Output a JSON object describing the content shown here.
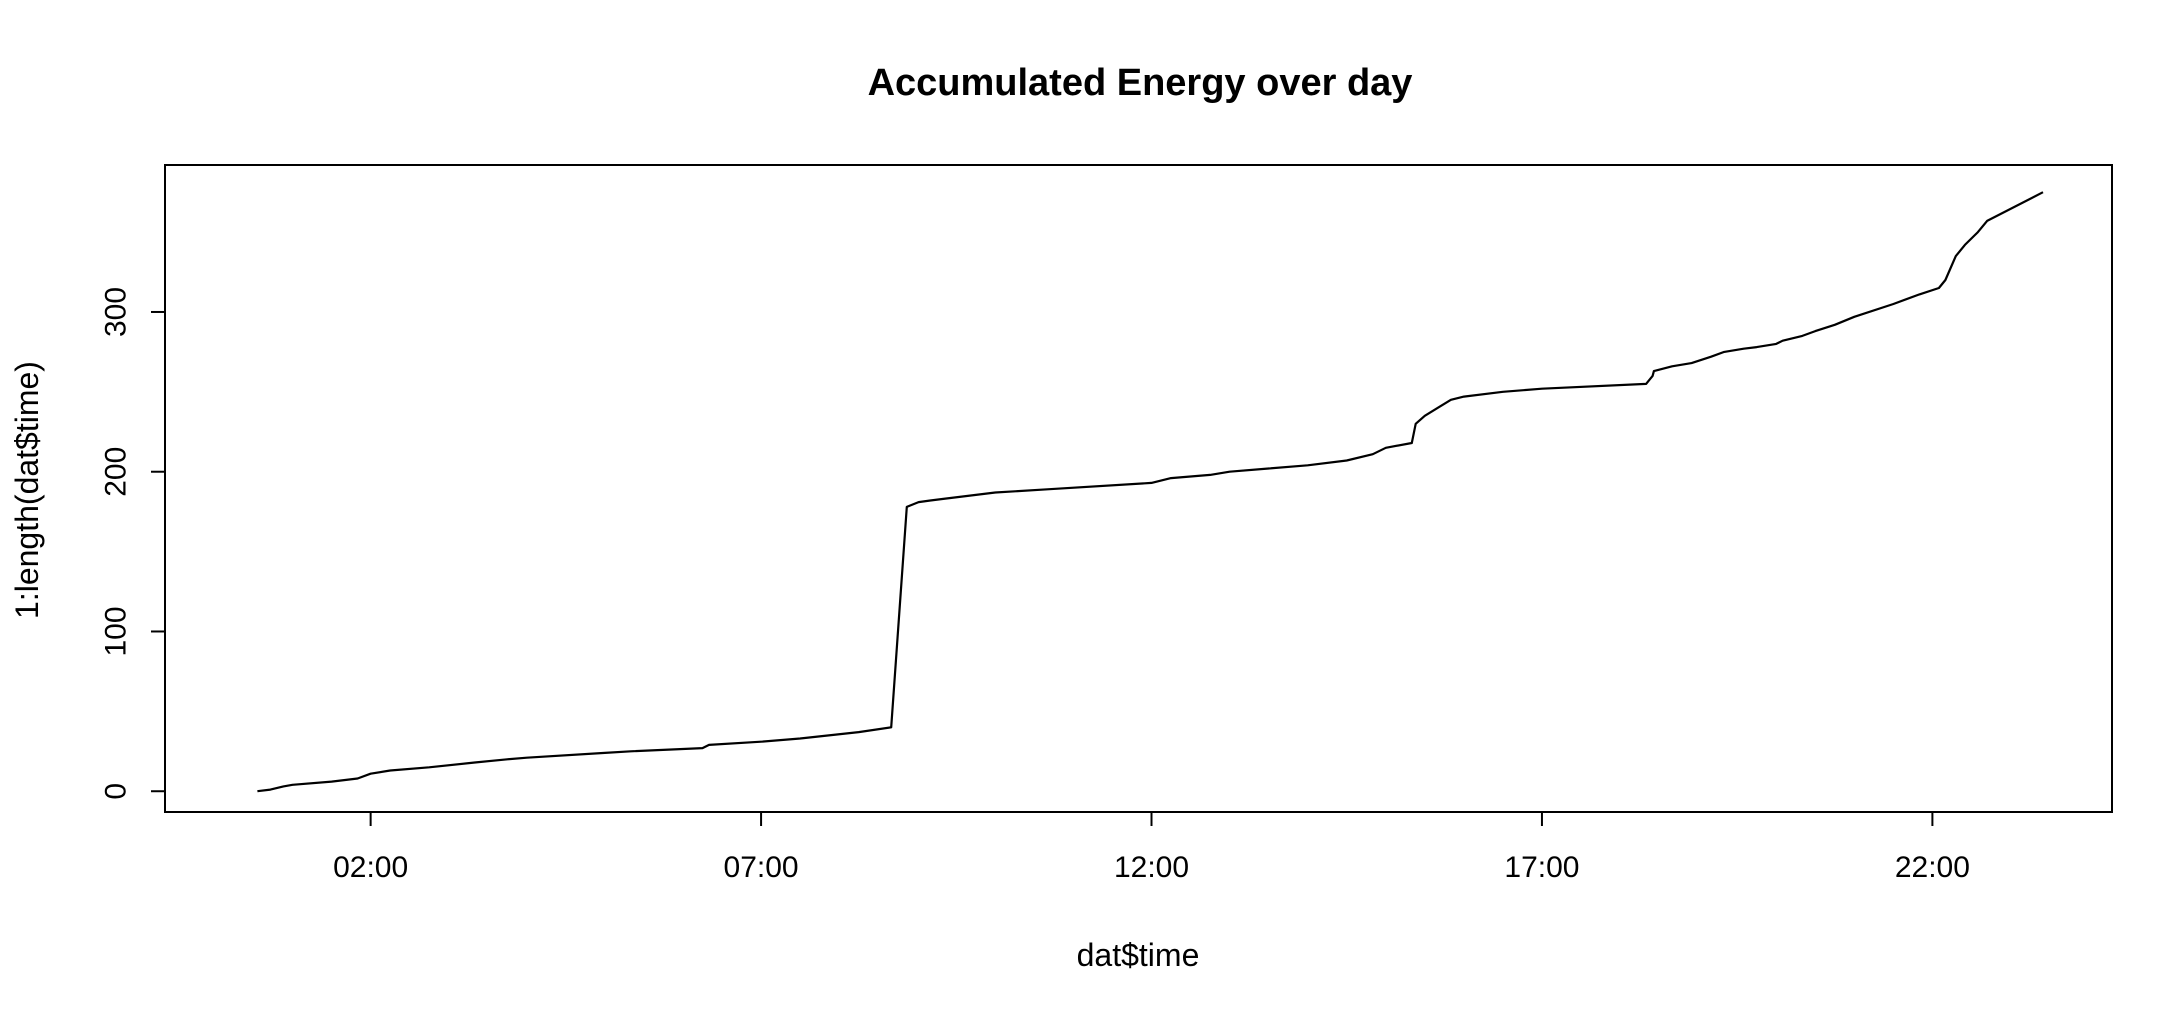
{
  "chart_data": {
    "type": "line",
    "title": "Accumulated Energy over day",
    "xlabel": "dat$time",
    "ylabel": "1:length(dat$time)",
    "xlim": [
      "-0:38",
      "24:18"
    ],
    "ylim": [
      -13,
      392
    ],
    "x_ticks": [
      {
        "value": "02:00",
        "label": "02:00"
      },
      {
        "value": "07:00",
        "label": "07:00"
      },
      {
        "value": "12:00",
        "label": "12:00"
      },
      {
        "value": "17:00",
        "label": "17:00"
      },
      {
        "value": "22:00",
        "label": "22:00"
      }
    ],
    "y_ticks": [
      {
        "value": 0,
        "label": "0"
      },
      {
        "value": 100,
        "label": "100"
      },
      {
        "value": 200,
        "label": "200"
      },
      {
        "value": 300,
        "label": "300"
      }
    ],
    "grid": false,
    "legend": "none",
    "line_color": "#000000",
    "series": [
      {
        "x": [
          "00:33",
          "00:43",
          "00:53",
          "01:00",
          "01:30",
          "01:50",
          "02:00",
          "02:15",
          "02:45",
          "03:20",
          "03:45",
          "04:00",
          "05:00",
          "05:20",
          "06:15",
          "06:20",
          "07:00",
          "07:30",
          "08:15",
          "08:40",
          "08:52",
          "09:01",
          "09:10",
          "09:20",
          "10:00",
          "10:40",
          "12:00",
          "12:15",
          "12:45",
          "13:00",
          "13:30",
          "14:00",
          "14:30",
          "14:50",
          "15:00",
          "15:20",
          "15:23",
          "15:30",
          "15:40",
          "15:50",
          "16:00",
          "16:30",
          "17:00",
          "18:20",
          "18:25",
          "18:26",
          "18:40",
          "18:55",
          "19:10",
          "19:20",
          "19:35",
          "19:45",
          "20:00",
          "20:05",
          "20:20",
          "20:30",
          "20:45",
          "21:00",
          "21:30",
          "21:50",
          "22:05",
          "22:10",
          "22:18",
          "22:25",
          "22:35",
          "22:42",
          "23:25"
        ],
        "y": [
          0,
          1,
          3,
          4,
          6,
          8,
          11,
          13,
          15,
          18,
          20,
          21,
          24,
          25,
          27,
          29,
          31,
          33,
          37,
          40,
          178,
          181,
          182,
          183,
          187,
          189,
          193,
          196,
          198,
          200,
          202,
          204,
          207,
          211,
          215,
          218,
          230,
          235,
          240,
          245,
          247,
          250,
          252,
          255,
          260,
          263,
          266,
          268,
          272,
          275,
          277,
          278,
          280,
          282,
          285,
          288,
          292,
          297,
          305,
          311,
          315,
          320,
          335,
          342,
          350,
          357,
          375
        ]
      }
    ]
  }
}
